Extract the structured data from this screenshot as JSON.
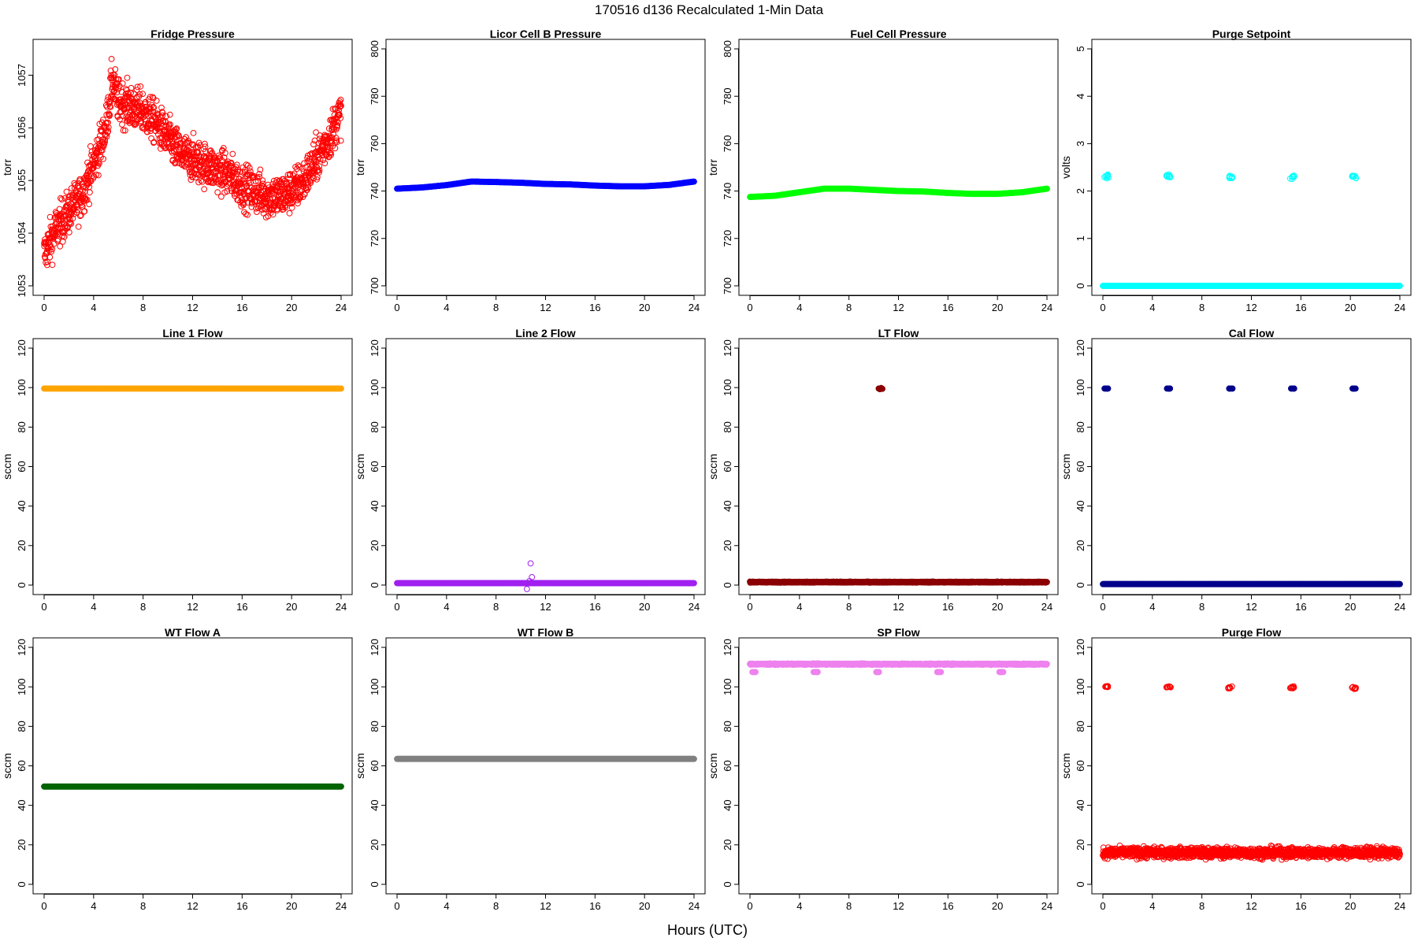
{
  "figure": {
    "title": "170516   d136   Recalculated 1-Min Data",
    "xlabel": "Hours (UTC)"
  },
  "chart_data": [
    {
      "type": "scatter",
      "title": "Fridge Pressure",
      "xlabel": "",
      "ylabel": "torr",
      "xlim": [
        0,
        24
      ],
      "ylim": [
        1053,
        1057.5
      ],
      "xticks": [
        0,
        4,
        8,
        12,
        16,
        20,
        24
      ],
      "yticks": [
        1053,
        1054,
        1055,
        1056,
        1057
      ],
      "grid": false,
      "series": [
        {
          "color": "#ff0000",
          "marker": "open",
          "x": [
            0,
            1,
            2,
            3,
            4,
            5,
            5.5,
            6,
            7,
            8,
            9,
            10,
            11,
            12,
            13,
            14,
            15,
            16,
            17,
            18,
            19,
            20,
            21,
            22,
            23,
            24
          ],
          "y": [
            1053.6,
            1054.1,
            1054.4,
            1054.7,
            1055.3,
            1056.0,
            1056.9,
            1056.5,
            1056.4,
            1056.3,
            1056.1,
            1055.8,
            1055.5,
            1055.4,
            1055.3,
            1055.2,
            1055.1,
            1054.9,
            1054.8,
            1054.7,
            1054.7,
            1054.8,
            1055.0,
            1055.4,
            1055.8,
            1056.3
          ],
          "spread": 0.7
        }
      ]
    },
    {
      "type": "scatter",
      "title": "Licor Cell B Pressure",
      "xlabel": "",
      "ylabel": "torr",
      "xlim": [
        0,
        24
      ],
      "ylim": [
        700,
        800
      ],
      "xticks": [
        0,
        4,
        8,
        12,
        16,
        20,
        24
      ],
      "yticks": [
        700,
        720,
        740,
        760,
        780,
        800
      ],
      "grid": false,
      "series": [
        {
          "color": "#0000ff",
          "marker": "filled",
          "x": [
            0,
            2,
            4,
            6,
            8,
            10,
            12,
            14,
            16,
            18,
            20,
            22,
            24
          ],
          "y": [
            741,
            741.5,
            742.5,
            744,
            743.8,
            743.5,
            743,
            742.8,
            742.3,
            742,
            742,
            742.6,
            744
          ],
          "spread": 0
        }
      ]
    },
    {
      "type": "scatter",
      "title": "Fuel Cell Pressure",
      "xlabel": "",
      "ylabel": "torr",
      "xlim": [
        0,
        24
      ],
      "ylim": [
        700,
        800
      ],
      "xticks": [
        0,
        4,
        8,
        12,
        16,
        20,
        24
      ],
      "yticks": [
        700,
        720,
        740,
        760,
        780,
        800
      ],
      "grid": false,
      "series": [
        {
          "color": "#00ff00",
          "marker": "filled",
          "x": [
            0,
            2,
            4,
            6,
            8,
            10,
            12,
            14,
            16,
            18,
            20,
            22,
            24
          ],
          "y": [
            737.5,
            738,
            739.5,
            741,
            741,
            740.5,
            740,
            739.8,
            739.2,
            738.8,
            738.8,
            739.5,
            741
          ],
          "spread": 0
        }
      ]
    },
    {
      "type": "scatter",
      "title": "Purge Setpoint",
      "xlabel": "",
      "ylabel": "volts",
      "xlim": [
        0,
        24
      ],
      "ylim": [
        0,
        5
      ],
      "xticks": [
        0,
        4,
        8,
        12,
        16,
        20,
        24
      ],
      "yticks": [
        0,
        1,
        2,
        3,
        4,
        5
      ],
      "grid": false,
      "series": [
        {
          "color": "#00ffff",
          "marker": "open",
          "x": [
            0,
            24
          ],
          "y": [
            0,
            0
          ],
          "spread": 0
        },
        {
          "color": "#00ffff",
          "marker": "open",
          "x": [
            0.3,
            5.3,
            10.3,
            15.3,
            20.3
          ],
          "y": [
            2.3,
            2.3,
            2.3,
            2.3,
            2.3
          ],
          "spread": 0.08,
          "clusters": true
        }
      ]
    },
    {
      "type": "scatter",
      "title": "Line 1 Flow",
      "xlabel": "",
      "ylabel": "sccm",
      "xlim": [
        0,
        24
      ],
      "ylim": [
        0,
        120
      ],
      "xticks": [
        0,
        4,
        8,
        12,
        16,
        20,
        24
      ],
      "yticks": [
        0,
        20,
        40,
        60,
        80,
        100,
        120
      ],
      "grid": false,
      "series": [
        {
          "color": "#ffa500",
          "marker": "filled",
          "x": [
            0,
            24
          ],
          "y": [
            99.5,
            99.5
          ],
          "spread": 0
        }
      ]
    },
    {
      "type": "scatter",
      "title": "Line 2 Flow",
      "xlabel": "",
      "ylabel": "sccm",
      "xlim": [
        0,
        24
      ],
      "ylim": [
        0,
        120
      ],
      "xticks": [
        0,
        4,
        8,
        12,
        16,
        20,
        24
      ],
      "yticks": [
        0,
        20,
        40,
        60,
        80,
        100,
        120
      ],
      "grid": false,
      "series": [
        {
          "color": "#a020f0",
          "marker": "filled",
          "x": [
            0,
            24
          ],
          "y": [
            1,
            1
          ],
          "spread": 0
        },
        {
          "color": "#a020f0",
          "marker": "open",
          "x": [
            10.5,
            10.8,
            10.9,
            10.7
          ],
          "y": [
            -2,
            11,
            4,
            2
          ],
          "spread": 0
        }
      ]
    },
    {
      "type": "scatter",
      "title": "LT Flow",
      "xlabel": "",
      "ylabel": "sccm",
      "xlim": [
        0,
        24
      ],
      "ylim": [
        0,
        120
      ],
      "xticks": [
        0,
        4,
        8,
        12,
        16,
        20,
        24
      ],
      "yticks": [
        0,
        20,
        40,
        60,
        80,
        100,
        120
      ],
      "grid": false,
      "series": [
        {
          "color": "#8b0000",
          "marker": "filled",
          "x": [
            0,
            24
          ],
          "y": [
            1.5,
            1.5
          ],
          "spread": 0.4
        },
        {
          "color": "#8b0000",
          "marker": "filled",
          "x": [
            10.4,
            10.5,
            10.6,
            10.7
          ],
          "y": [
            99.5,
            99.2,
            99.8,
            99.4
          ],
          "spread": 0
        }
      ]
    },
    {
      "type": "scatter",
      "title": "Cal Flow",
      "xlabel": "",
      "ylabel": "sccm",
      "xlim": [
        0,
        24
      ],
      "ylim": [
        0,
        120
      ],
      "xticks": [
        0,
        4,
        8,
        12,
        16,
        20,
        24
      ],
      "yticks": [
        0,
        20,
        40,
        60,
        80,
        100,
        120
      ],
      "grid": false,
      "series": [
        {
          "color": "#00008b",
          "marker": "filled",
          "x": [
            0,
            24
          ],
          "y": [
            0.5,
            0.5
          ],
          "spread": 0
        },
        {
          "color": "#00008b",
          "marker": "filled",
          "x": [
            0.3,
            5.3,
            10.3,
            15.3,
            20.3
          ],
          "y": [
            99.5,
            99.5,
            99.5,
            99.5,
            99.5
          ],
          "spread": 0,
          "clusters": true
        }
      ]
    },
    {
      "type": "scatter",
      "title": "WT Flow A",
      "xlabel": "",
      "ylabel": "sccm",
      "xlim": [
        0,
        24
      ],
      "ylim": [
        0,
        120
      ],
      "xticks": [
        0,
        4,
        8,
        12,
        16,
        20,
        24
      ],
      "yticks": [
        0,
        20,
        40,
        60,
        80,
        100,
        120
      ],
      "grid": false,
      "series": [
        {
          "color": "#006400",
          "marker": "filled",
          "x": [
            0,
            24
          ],
          "y": [
            49.5,
            49.5
          ],
          "spread": 0
        }
      ]
    },
    {
      "type": "scatter",
      "title": "WT Flow B",
      "xlabel": "",
      "ylabel": "sccm",
      "xlim": [
        0,
        24
      ],
      "ylim": [
        0,
        120
      ],
      "xticks": [
        0,
        4,
        8,
        12,
        16,
        20,
        24
      ],
      "yticks": [
        0,
        20,
        40,
        60,
        80,
        100,
        120
      ],
      "grid": false,
      "series": [
        {
          "color": "#808080",
          "marker": "filled",
          "x": [
            0,
            24
          ],
          "y": [
            63.5,
            63.5
          ],
          "spread": 0
        }
      ]
    },
    {
      "type": "scatter",
      "title": "SP Flow",
      "xlabel": "",
      "ylabel": "sccm",
      "xlim": [
        0,
        24
      ],
      "ylim": [
        0,
        120
      ],
      "xticks": [
        0,
        4,
        8,
        12,
        16,
        20,
        24
      ],
      "yticks": [
        0,
        20,
        40,
        60,
        80,
        100,
        120
      ],
      "grid": false,
      "series": [
        {
          "color": "#ee82ee",
          "marker": "filled",
          "x": [
            0,
            24
          ],
          "y": [
            111.5,
            111.5
          ],
          "spread": 0.5
        },
        {
          "color": "#ee82ee",
          "marker": "filled",
          "x": [
            0.3,
            5.3,
            10.3,
            15.3,
            20.3
          ],
          "y": [
            107.5,
            107.5,
            107.5,
            107.5,
            107.5
          ],
          "spread": 0,
          "clusters": true
        }
      ]
    },
    {
      "type": "scatter",
      "title": "Purge Flow",
      "xlabel": "",
      "ylabel": "sccm",
      "xlim": [
        0,
        24
      ],
      "ylim": [
        0,
        120
      ],
      "xticks": [
        0,
        4,
        8,
        12,
        16,
        20,
        24
      ],
      "yticks": [
        0,
        20,
        40,
        60,
        80,
        100,
        120
      ],
      "grid": false,
      "series": [
        {
          "color": "#ff0000",
          "marker": "open",
          "x": [
            0,
            24
          ],
          "y": [
            16,
            16
          ],
          "spread": 4.5
        },
        {
          "color": "#ff0000",
          "marker": "open",
          "x": [
            0.3,
            5.3,
            10.3,
            15.3,
            20.3
          ],
          "y": [
            100,
            100,
            99.5,
            99.5,
            99.5
          ],
          "spread": 1,
          "clusters": true
        }
      ]
    }
  ]
}
